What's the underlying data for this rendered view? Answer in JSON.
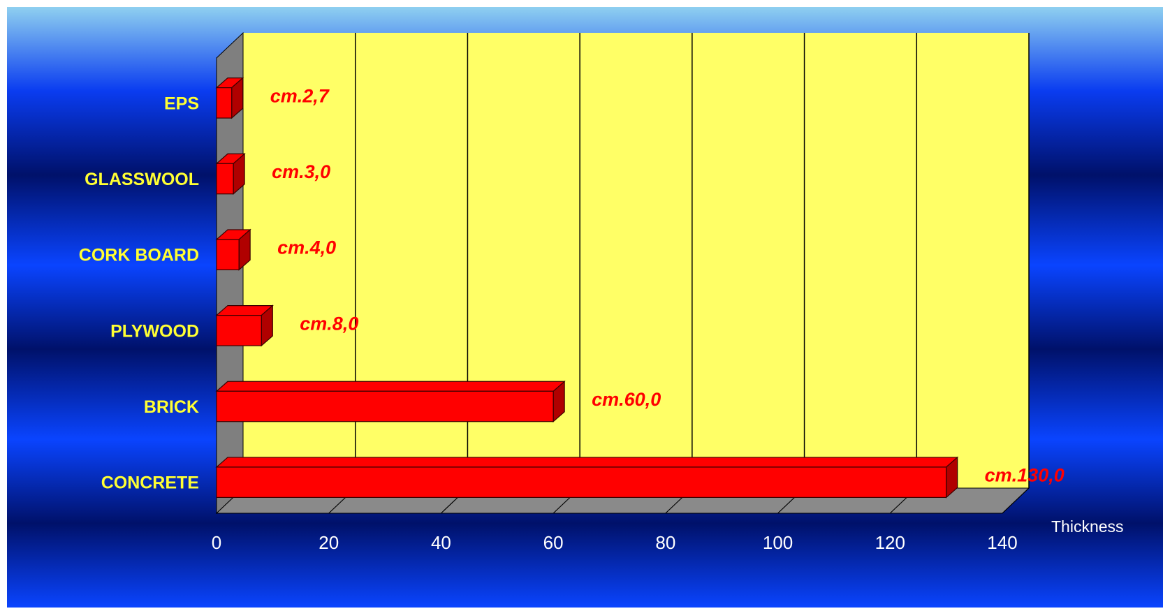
{
  "chart_data": {
    "type": "bar",
    "orientation": "horizontal",
    "style": "3d",
    "categories": [
      "EPS",
      "GLASSWOOL",
      "CORK BOARD",
      "PLYWOOD",
      "BRICK",
      "CONCRETE"
    ],
    "values": [
      2.7,
      3.0,
      4.0,
      8.0,
      60.0,
      130.0
    ],
    "data_labels": [
      "cm.2,7",
      "cm.3,0",
      "cm.4,0",
      "cm.8,0",
      "cm.60,0",
      "cm.130,0"
    ],
    "xlabel": "Thickness",
    "ylabel": "",
    "xlim": [
      0,
      140
    ],
    "xticks": [
      0,
      20,
      40,
      60,
      80,
      100,
      120,
      140
    ],
    "grid": "vertical",
    "legend": "none",
    "colors": {
      "bar": "#ff0000",
      "bar_side": "#b00000",
      "bar_edge": "#3a0000",
      "plot_background": "#ffff66",
      "wall": "#7f7f7f",
      "floor": "#8a8a8a",
      "category_text": "#ffff33",
      "data_label_text": "#ff0000",
      "axis_text": "#ffffff",
      "background_top": "#8fd0f0",
      "background_mid": "#0a3cf0",
      "background_dark": "#00116a"
    }
  }
}
